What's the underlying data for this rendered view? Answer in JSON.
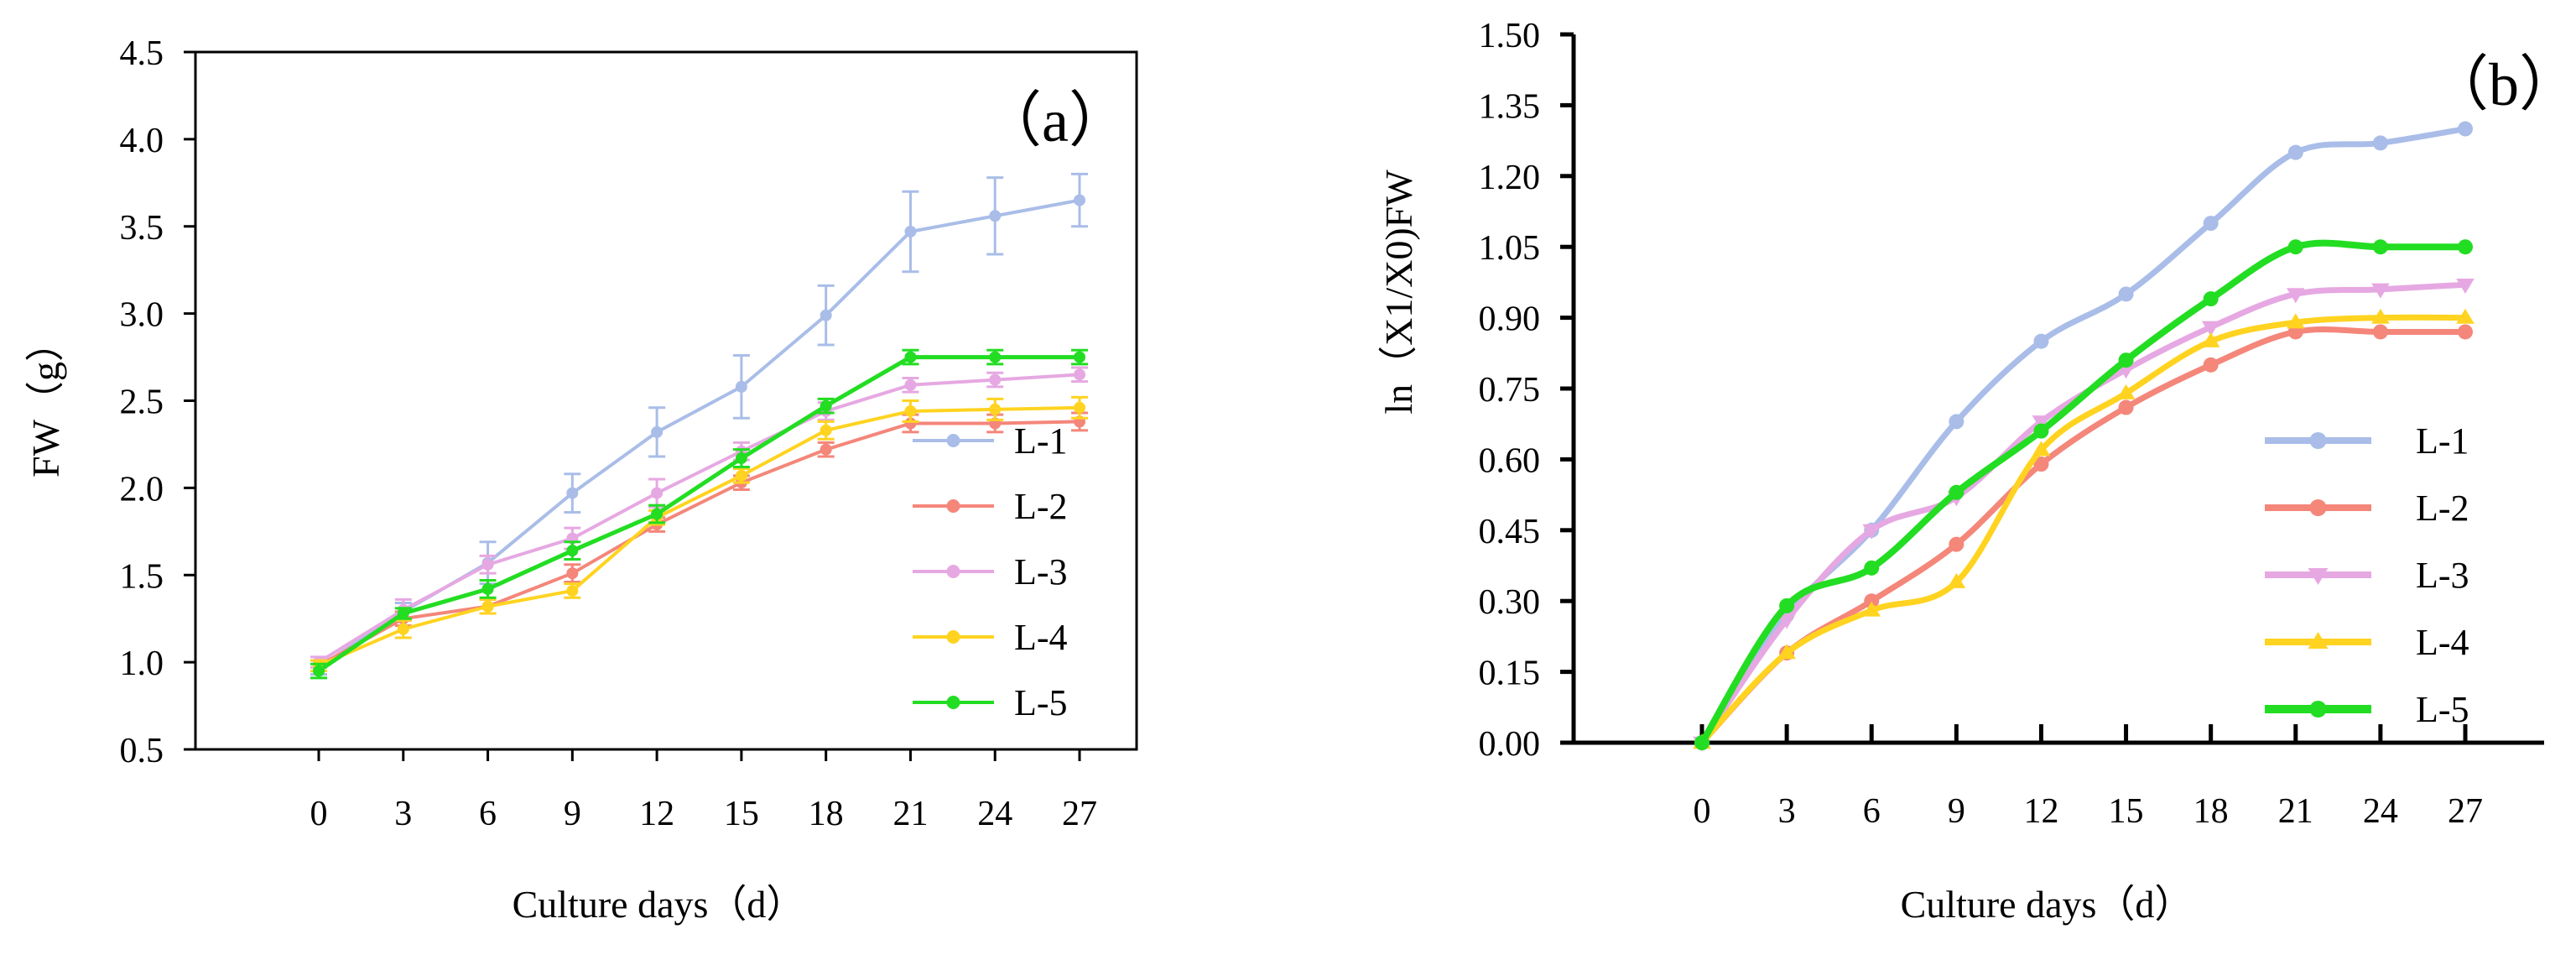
{
  "chart_data": [
    {
      "id": "a",
      "type": "line",
      "panel_label": "（a）",
      "xlabel": "Culture days（d）",
      "ylabel": "FW（g）",
      "categories": [
        "0",
        "3",
        "6",
        "9",
        "12",
        "15",
        "18",
        "21",
        "24",
        "27"
      ],
      "x": [
        0,
        3,
        6,
        9,
        12,
        15,
        18,
        21,
        24,
        27
      ],
      "ylim": [
        0.5,
        4.5
      ],
      "yticks": [
        "0.5",
        "1.0",
        "1.5",
        "2.0",
        "2.5",
        "3.0",
        "3.5",
        "4.0",
        "4.5"
      ],
      "legend_position": "right",
      "series": [
        {
          "name": "L-1",
          "color": "#a9bde8",
          "marker": "circle",
          "values": [
            0.97,
            1.29,
            1.57,
            1.97,
            2.32,
            2.58,
            2.99,
            3.47,
            3.56,
            3.65
          ],
          "errors": [
            0.04,
            0.05,
            0.12,
            0.11,
            0.14,
            0.18,
            0.17,
            0.23,
            0.22,
            0.15
          ]
        },
        {
          "name": "L-2",
          "color": "#f4867a",
          "marker": "circle",
          "values": [
            0.98,
            1.25,
            1.32,
            1.51,
            1.79,
            2.03,
            2.22,
            2.37,
            2.37,
            2.38
          ],
          "errors": [
            0.03,
            0.04,
            0.04,
            0.05,
            0.04,
            0.04,
            0.04,
            0.05,
            0.05,
            0.05
          ]
        },
        {
          "name": "L-3",
          "color": "#e6a8e2",
          "marker": "circle",
          "values": [
            1.0,
            1.3,
            1.56,
            1.71,
            1.97,
            2.21,
            2.44,
            2.59,
            2.62,
            2.65
          ],
          "errors": [
            0.03,
            0.06,
            0.05,
            0.06,
            0.08,
            0.05,
            0.05,
            0.04,
            0.04,
            0.04
          ]
        },
        {
          "name": "L-4",
          "color": "#ffd320",
          "marker": "circle",
          "values": [
            0.98,
            1.19,
            1.32,
            1.41,
            1.83,
            2.07,
            2.33,
            2.44,
            2.45,
            2.46
          ],
          "errors": [
            0.03,
            0.05,
            0.04,
            0.04,
            0.04,
            0.04,
            0.05,
            0.06,
            0.06,
            0.06
          ]
        },
        {
          "name": "L-5",
          "color": "#22dd22",
          "marker": "circle",
          "values": [
            0.95,
            1.28,
            1.42,
            1.64,
            1.85,
            2.17,
            2.47,
            2.75,
            2.75,
            2.75
          ],
          "errors": [
            0.04,
            0.03,
            0.05,
            0.05,
            0.05,
            0.05,
            0.04,
            0.04,
            0.04,
            0.04
          ]
        }
      ]
    },
    {
      "id": "b",
      "type": "line",
      "panel_label": "（b）",
      "xlabel": "Culture days（d）",
      "ylabel": "ln（X1/X0)FW",
      "categories": [
        "0",
        "3",
        "6",
        "9",
        "12",
        "15",
        "18",
        "21",
        "24",
        "27"
      ],
      "x": [
        0,
        3,
        6,
        9,
        12,
        15,
        18,
        21,
        24,
        27
      ],
      "ylim": [
        0.0,
        1.5
      ],
      "yticks": [
        "0.00",
        "0.15",
        "0.30",
        "0.45",
        "0.60",
        "0.75",
        "0.90",
        "1.05",
        "1.20",
        "1.35",
        "1.50"
      ],
      "legend_position": "right",
      "series": [
        {
          "name": "L-1",
          "color": "#a9bde8",
          "marker": "circle",
          "values": [
            0.0,
            0.27,
            0.45,
            0.68,
            0.85,
            0.95,
            1.1,
            1.25,
            1.27,
            1.3
          ]
        },
        {
          "name": "L-2",
          "color": "#f4867a",
          "marker": "circle",
          "values": [
            0.0,
            0.19,
            0.3,
            0.42,
            0.59,
            0.71,
            0.8,
            0.87,
            0.87,
            0.87
          ]
        },
        {
          "name": "L-3",
          "color": "#e6a8e2",
          "marker": "triangle-down",
          "values": [
            0.0,
            0.26,
            0.45,
            0.52,
            0.68,
            0.79,
            0.88,
            0.95,
            0.96,
            0.97
          ]
        },
        {
          "name": "L-4",
          "color": "#ffd320",
          "marker": "triangle-up",
          "values": [
            0.0,
            0.19,
            0.28,
            0.34,
            0.62,
            0.74,
            0.85,
            0.89,
            0.9,
            0.9
          ]
        },
        {
          "name": "L-5",
          "color": "#22dd22",
          "marker": "circle",
          "values": [
            0.0,
            0.29,
            0.37,
            0.53,
            0.66,
            0.81,
            0.94,
            1.05,
            1.05,
            1.05
          ]
        }
      ]
    }
  ]
}
